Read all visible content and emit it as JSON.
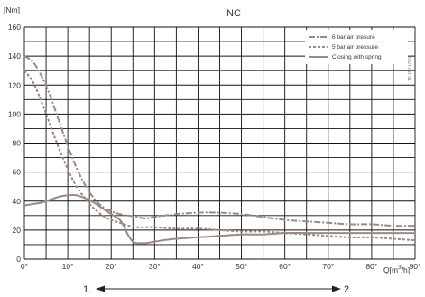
{
  "chart_data": {
    "type": "line",
    "title": "NC",
    "ylabel": "[Nm]",
    "xlabel": "Q[m",
    "xlabel_sup": "3",
    "xlabel_tail": "/h]",
    "doc_id": "TD 453-175/1",
    "xlim": [
      0,
      90
    ],
    "ylim": [
      0,
      160
    ],
    "x_ticks": [
      "0°",
      "10°",
      "20°",
      "30°",
      "40°",
      "50°",
      "60°",
      "70°",
      "80°",
      "90°"
    ],
    "x_tick_values": [
      0,
      10,
      20,
      30,
      40,
      50,
      60,
      70,
      80,
      90
    ],
    "y_ticks": [
      "0",
      "20",
      "40",
      "60",
      "80",
      "100",
      "120",
      "140",
      "160"
    ],
    "y_tick_values": [
      0,
      20,
      40,
      60,
      80,
      100,
      120,
      140,
      160
    ],
    "grid": true,
    "legend_position": "top-right",
    "series": [
      {
        "name": "6 bar air presure",
        "dash": "dashdot",
        "color": "#9c8982",
        "x": [
          0,
          2,
          4,
          6,
          8,
          10,
          12,
          14,
          16,
          18,
          20,
          22,
          24,
          26,
          28,
          30,
          35,
          40,
          45,
          50,
          55,
          60,
          65,
          70,
          75,
          80,
          85,
          90
        ],
        "y": [
          140,
          136,
          126,
          112,
          95,
          78,
          63,
          51,
          42,
          36,
          33,
          31,
          30,
          29,
          28,
          29,
          31,
          32,
          32,
          31,
          29,
          27,
          26,
          25,
          24,
          24,
          23,
          23
        ]
      },
      {
        "name": "5 bar air pressure",
        "dash": "dashed",
        "color": "#9c8982",
        "x": [
          0,
          2,
          4,
          6,
          8,
          10,
          12,
          14,
          16,
          18,
          20,
          22,
          24,
          26,
          28,
          30,
          35,
          40,
          45,
          50,
          55,
          60,
          65,
          70,
          75,
          80,
          85,
          90
        ],
        "y": [
          130,
          122,
          108,
          92,
          76,
          62,
          50,
          42,
          35,
          30,
          27,
          25,
          23,
          22,
          22,
          22,
          21,
          21,
          20,
          19,
          19,
          18,
          17,
          16,
          15,
          15,
          14,
          13
        ]
      },
      {
        "name": "Closing with spring",
        "dash": "solid",
        "color": "#9c8982",
        "x": [
          0,
          2,
          4,
          6,
          8,
          10,
          12,
          14,
          16,
          18,
          20,
          22,
          23,
          24,
          25,
          26,
          27,
          28,
          30,
          32,
          35,
          40,
          45,
          50,
          55,
          60,
          65,
          70,
          75,
          80,
          85,
          90
        ],
        "y": [
          37,
          38,
          39,
          41,
          43,
          44,
          44,
          42,
          39,
          35,
          31,
          27,
          22,
          16,
          12,
          11,
          11,
          11,
          12,
          13,
          14,
          15,
          16,
          17,
          17,
          18,
          18,
          18,
          18,
          18,
          18,
          18
        ]
      }
    ],
    "range_labels": [
      "1.",
      "2."
    ]
  }
}
